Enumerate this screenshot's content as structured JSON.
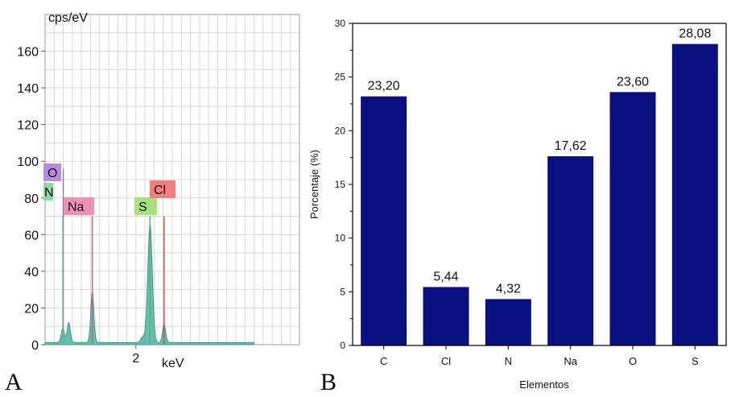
{
  "panels": {
    "a_label": "A",
    "b_label": "B"
  },
  "colors": {
    "bar": "#0a1080",
    "spectrum_fill": "#4fb8a8",
    "grid": "#d8d8d8",
    "badge_o": "#b58ae0",
    "badge_n": "#8fd8a0",
    "badge_na": "#f090b0",
    "badge_s": "#a8e07a",
    "badge_cl": "#f08080"
  },
  "chart_data": [
    {
      "type": "area",
      "ylabel": "cps/eV",
      "xlabel": "keV",
      "x_ticks": [
        "2"
      ],
      "y_ticks": [
        "0",
        "20",
        "40",
        "60",
        "80",
        "100",
        "120",
        "140",
        "160"
      ],
      "xlim": [
        0,
        5.6
      ],
      "ylim": [
        0,
        180
      ],
      "grid": true,
      "peaks": [
        {
          "element": "N",
          "energy": 0.39,
          "height": 8
        },
        {
          "element": "O",
          "energy": 0.52,
          "height": 11
        },
        {
          "element": "Na",
          "energy": 1.04,
          "height": 28
        },
        {
          "element": "S",
          "energy": 2.31,
          "height": 65
        },
        {
          "element": "Cl",
          "energy": 2.62,
          "height": 10
        }
      ],
      "element_markers": [
        {
          "label": "O",
          "energy": 0.4,
          "marker_top": 96
        },
        {
          "label": "N",
          "energy": 0.39,
          "marker_top": 70
        },
        {
          "label": "Na",
          "energy": 1.04,
          "marker_top": 70
        },
        {
          "label": "S",
          "energy": 2.31,
          "marker_top": 70
        },
        {
          "label": "Cl",
          "energy": 2.62,
          "marker_top": 70
        }
      ]
    },
    {
      "type": "bar",
      "categories": [
        "C",
        "Cl",
        "N",
        "Na",
        "O",
        "S"
      ],
      "values": [
        23.2,
        5.44,
        4.32,
        17.62,
        23.6,
        28.08
      ],
      "value_labels": [
        "23,20",
        "5,44",
        "4,32",
        "17,62",
        "23,60",
        "28,08"
      ],
      "xlabel": "Elementos",
      "ylabel": "Porcentaje (%)",
      "ylim": [
        0,
        30
      ],
      "y_ticks": [
        "0",
        "5",
        "10",
        "15",
        "20",
        "25",
        "30"
      ],
      "grid": false
    }
  ]
}
